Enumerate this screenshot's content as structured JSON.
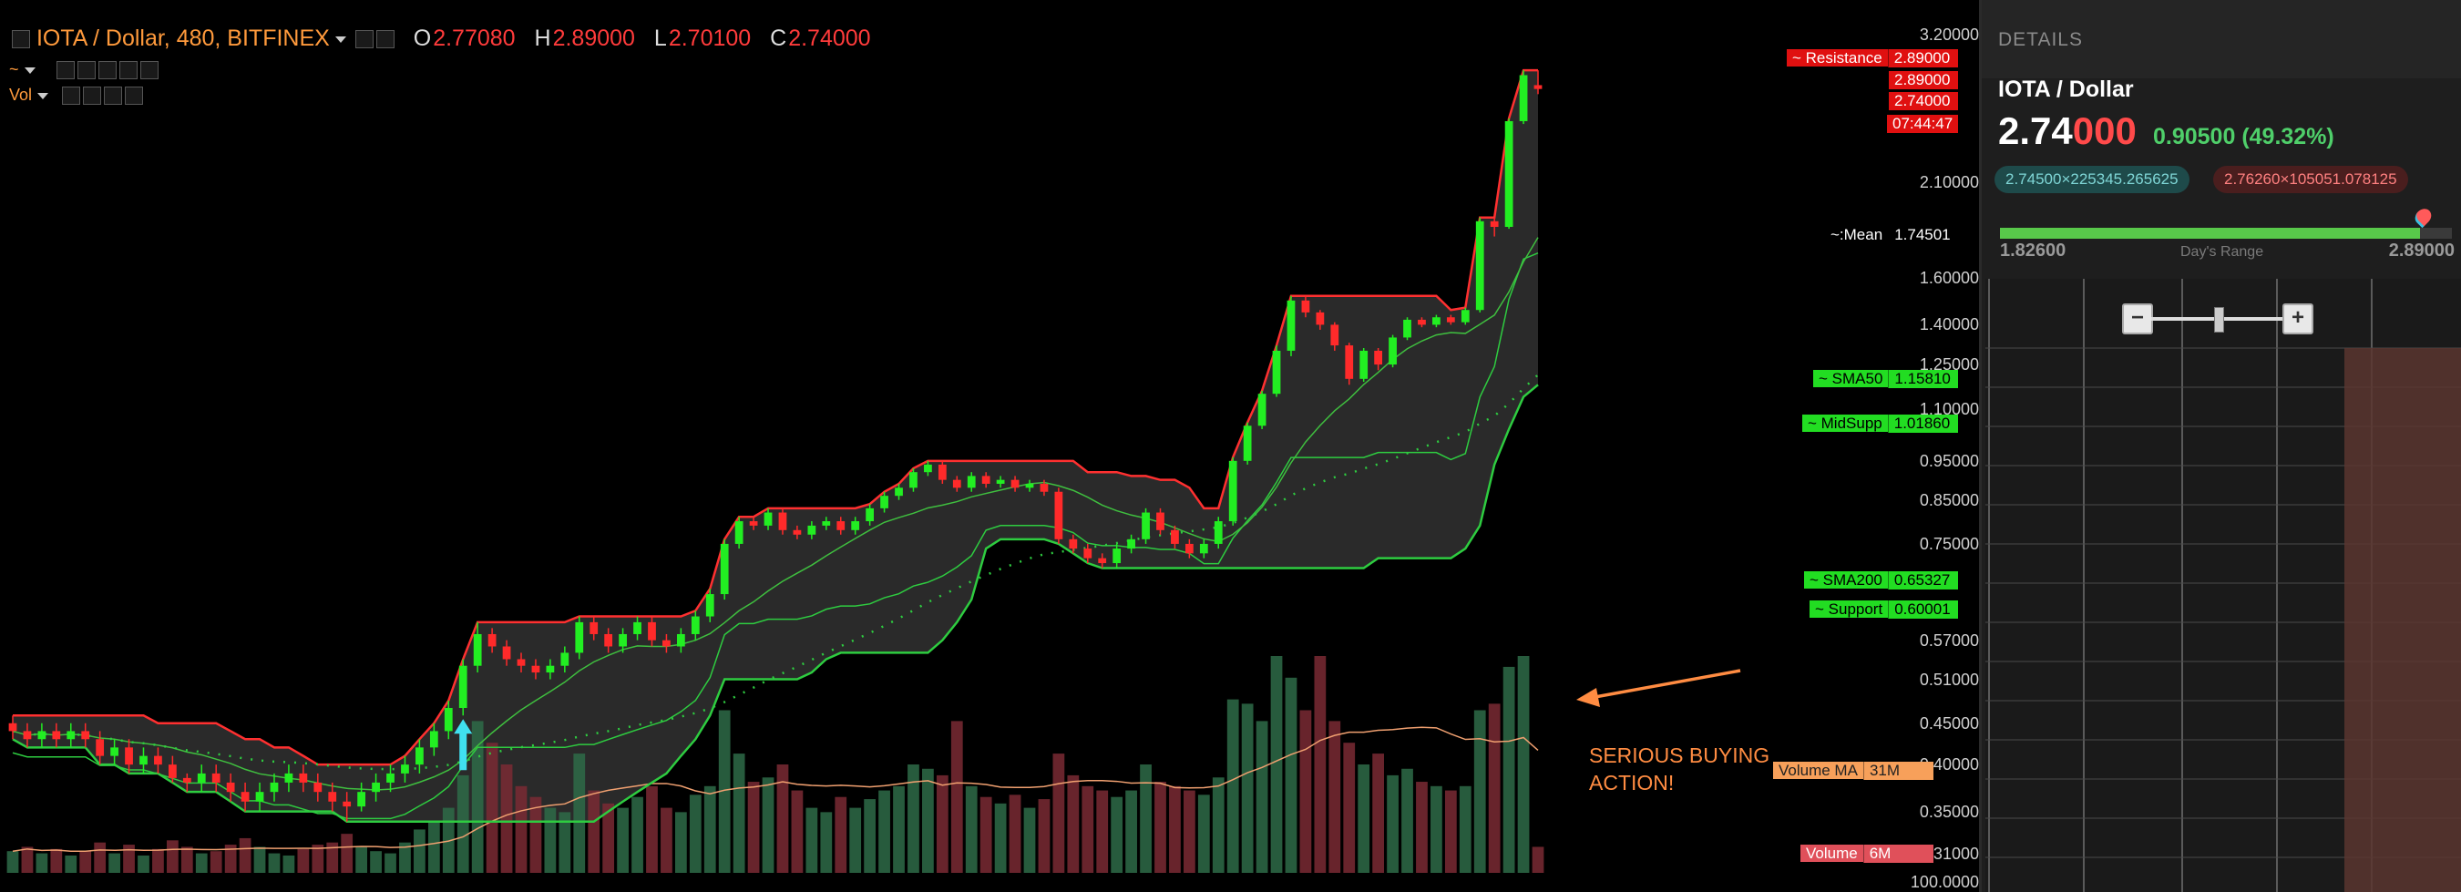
{
  "header": {
    "symbol": "IOTA / Dollar, 480, BITFINEX",
    "ohlc": [
      {
        "key": "O",
        "value": "2.77080"
      },
      {
        "key": "H",
        "value": "2.89000"
      },
      {
        "key": "L",
        "value": "2.70100"
      },
      {
        "key": "C",
        "value": "2.74000"
      }
    ],
    "indicator_row": "~",
    "volume_row": "Vol"
  },
  "annotation": "SERIOUS BUYING\nACTION!",
  "colors": {
    "up": "#22ee22",
    "down": "#ff2a2a",
    "resistance": "#ff3030",
    "support": "#2ecc40",
    "sma50": "#3fbf3f",
    "sma200": "#2ecc40",
    "volume_up": "#2e6b48",
    "volume_down": "#7a2a34",
    "volume_ma": "#f0a070",
    "annotation": "#ff8c42",
    "band_fill": "#2a2a2a"
  },
  "chart_data": {
    "type": "candlestick",
    "y_axis": {
      "scale": "log",
      "range": [
        0.3,
        3.3
      ],
      "ticks": [
        {
          "value": 3.2,
          "label": "3.20000"
        },
        {
          "value": 2.1,
          "label": "2.10000"
        },
        {
          "value": 1.6,
          "label": "1.60000"
        },
        {
          "value": 1.4,
          "label": "1.40000"
        },
        {
          "value": 1.25,
          "label": "1.25000"
        },
        {
          "value": 1.1,
          "label": "1.10000"
        },
        {
          "value": 0.95,
          "label": "0.95000"
        },
        {
          "value": 0.85,
          "label": "0.85000"
        },
        {
          "value": 0.75,
          "label": "0.75000"
        },
        {
          "value": 0.57,
          "label": "0.57000"
        },
        {
          "value": 0.51,
          "label": "0.51000"
        },
        {
          "value": 0.45,
          "label": "0.45000"
        },
        {
          "value": 0.4,
          "label": "0.40000"
        },
        {
          "value": 0.35,
          "label": "0.35000"
        },
        {
          "value": 0.31,
          "label": "0.31000"
        }
      ],
      "volume_axis_label": "100.0000"
    },
    "price_tags": [
      {
        "name": "~ Resistance",
        "value": "2.89000",
        "price": 2.89,
        "style": "red"
      },
      {
        "name": "",
        "value": "2.89000",
        "price": 2.85,
        "style": "red"
      },
      {
        "name": "",
        "value": "2.74000",
        "price": 2.74,
        "style": "red"
      },
      {
        "name": "",
        "value": "07:44:47",
        "price": 2.62,
        "style": "red"
      },
      {
        "name": "~:Mean",
        "value": "1.74501",
        "price": 1.745,
        "style": "plain"
      },
      {
        "name": "~ SMA50",
        "value": "1.15810",
        "price": 1.158,
        "style": "green"
      },
      {
        "name": "~ MidSupp",
        "value": "1.01860",
        "price": 1.0186,
        "style": "green"
      },
      {
        "name": "~ SMA200",
        "value": "0.65327",
        "price": 0.65327,
        "style": "green"
      },
      {
        "name": "~ Support",
        "value": "0.60001",
        "price": 0.60001,
        "style": "green"
      }
    ],
    "volume_tags": [
      {
        "name": "Volume MA",
        "value": "31M",
        "style": "orange"
      },
      {
        "name": "Volume",
        "value": "6M",
        "style": "volred"
      }
    ],
    "candles": [
      [
        0.45,
        0.44,
        0.46,
        0.43
      ],
      [
        0.44,
        0.43,
        0.45,
        0.42
      ],
      [
        0.43,
        0.44,
        0.45,
        0.42
      ],
      [
        0.44,
        0.43,
        0.45,
        0.42
      ],
      [
        0.43,
        0.44,
        0.45,
        0.42
      ],
      [
        0.44,
        0.43,
        0.45,
        0.42
      ],
      [
        0.43,
        0.41,
        0.44,
        0.4
      ],
      [
        0.41,
        0.42,
        0.43,
        0.4
      ],
      [
        0.42,
        0.4,
        0.43,
        0.39
      ],
      [
        0.4,
        0.41,
        0.42,
        0.39
      ],
      [
        0.41,
        0.4,
        0.42,
        0.39
      ],
      [
        0.4,
        0.385,
        0.41,
        0.38
      ],
      [
        0.385,
        0.38,
        0.39,
        0.37
      ],
      [
        0.38,
        0.39,
        0.4,
        0.37
      ],
      [
        0.39,
        0.38,
        0.4,
        0.37
      ],
      [
        0.38,
        0.37,
        0.39,
        0.36
      ],
      [
        0.37,
        0.36,
        0.38,
        0.35
      ],
      [
        0.36,
        0.37,
        0.38,
        0.35
      ],
      [
        0.37,
        0.38,
        0.39,
        0.36
      ],
      [
        0.38,
        0.39,
        0.4,
        0.37
      ],
      [
        0.39,
        0.38,
        0.4,
        0.37
      ],
      [
        0.38,
        0.37,
        0.39,
        0.36
      ],
      [
        0.37,
        0.36,
        0.38,
        0.35
      ],
      [
        0.36,
        0.355,
        0.37,
        0.34
      ],
      [
        0.355,
        0.37,
        0.38,
        0.35
      ],
      [
        0.37,
        0.38,
        0.39,
        0.36
      ],
      [
        0.38,
        0.39,
        0.4,
        0.37
      ],
      [
        0.39,
        0.4,
        0.41,
        0.38
      ],
      [
        0.4,
        0.42,
        0.43,
        0.39
      ],
      [
        0.42,
        0.44,
        0.45,
        0.41
      ],
      [
        0.44,
        0.47,
        0.48,
        0.43
      ],
      [
        0.47,
        0.53,
        0.54,
        0.46
      ],
      [
        0.53,
        0.58,
        0.6,
        0.52
      ],
      [
        0.58,
        0.56,
        0.59,
        0.55
      ],
      [
        0.56,
        0.54,
        0.57,
        0.53
      ],
      [
        0.54,
        0.53,
        0.55,
        0.52
      ],
      [
        0.53,
        0.52,
        0.54,
        0.51
      ],
      [
        0.52,
        0.53,
        0.54,
        0.51
      ],
      [
        0.53,
        0.55,
        0.56,
        0.52
      ],
      [
        0.55,
        0.6,
        0.61,
        0.54
      ],
      [
        0.6,
        0.58,
        0.61,
        0.57
      ],
      [
        0.58,
        0.56,
        0.59,
        0.55
      ],
      [
        0.56,
        0.58,
        0.59,
        0.55
      ],
      [
        0.58,
        0.6,
        0.61,
        0.57
      ],
      [
        0.6,
        0.57,
        0.61,
        0.56
      ],
      [
        0.57,
        0.56,
        0.58,
        0.55
      ],
      [
        0.56,
        0.58,
        0.59,
        0.55
      ],
      [
        0.58,
        0.61,
        0.62,
        0.57
      ],
      [
        0.61,
        0.65,
        0.66,
        0.6
      ],
      [
        0.65,
        0.75,
        0.76,
        0.64
      ],
      [
        0.75,
        0.8,
        0.81,
        0.74
      ],
      [
        0.8,
        0.79,
        0.81,
        0.78
      ],
      [
        0.79,
        0.82,
        0.83,
        0.78
      ],
      [
        0.82,
        0.78,
        0.83,
        0.77
      ],
      [
        0.78,
        0.77,
        0.79,
        0.76
      ],
      [
        0.77,
        0.79,
        0.8,
        0.76
      ],
      [
        0.79,
        0.8,
        0.81,
        0.78
      ],
      [
        0.8,
        0.78,
        0.81,
        0.77
      ],
      [
        0.78,
        0.8,
        0.81,
        0.77
      ],
      [
        0.8,
        0.83,
        0.84,
        0.79
      ],
      [
        0.83,
        0.86,
        0.87,
        0.82
      ],
      [
        0.86,
        0.88,
        0.89,
        0.85
      ],
      [
        0.88,
        0.92,
        0.93,
        0.87
      ],
      [
        0.92,
        0.94,
        0.95,
        0.91
      ],
      [
        0.94,
        0.9,
        0.95,
        0.89
      ],
      [
        0.9,
        0.88,
        0.91,
        0.87
      ],
      [
        0.88,
        0.91,
        0.92,
        0.87
      ],
      [
        0.91,
        0.89,
        0.92,
        0.88
      ],
      [
        0.89,
        0.9,
        0.91,
        0.88
      ],
      [
        0.9,
        0.88,
        0.91,
        0.87
      ],
      [
        0.88,
        0.89,
        0.9,
        0.87
      ],
      [
        0.89,
        0.87,
        0.9,
        0.86
      ],
      [
        0.87,
        0.76,
        0.88,
        0.75
      ],
      [
        0.76,
        0.74,
        0.77,
        0.73
      ],
      [
        0.74,
        0.72,
        0.75,
        0.71
      ],
      [
        0.72,
        0.71,
        0.73,
        0.7
      ],
      [
        0.71,
        0.74,
        0.75,
        0.7
      ],
      [
        0.74,
        0.76,
        0.77,
        0.73
      ],
      [
        0.76,
        0.82,
        0.83,
        0.75
      ],
      [
        0.82,
        0.78,
        0.83,
        0.77
      ],
      [
        0.78,
        0.75,
        0.79,
        0.74
      ],
      [
        0.75,
        0.73,
        0.76,
        0.72
      ],
      [
        0.73,
        0.75,
        0.76,
        0.72
      ],
      [
        0.75,
        0.8,
        0.81,
        0.74
      ],
      [
        0.8,
        0.95,
        0.96,
        0.79
      ],
      [
        0.95,
        1.05,
        1.06,
        0.94
      ],
      [
        1.05,
        1.15,
        1.16,
        1.04
      ],
      [
        1.15,
        1.3,
        1.32,
        1.14
      ],
      [
        1.3,
        1.5,
        1.52,
        1.28
      ],
      [
        1.5,
        1.45,
        1.52,
        1.43
      ],
      [
        1.45,
        1.4,
        1.46,
        1.38
      ],
      [
        1.4,
        1.32,
        1.41,
        1.3
      ],
      [
        1.32,
        1.2,
        1.33,
        1.18
      ],
      [
        1.2,
        1.3,
        1.31,
        1.19
      ],
      [
        1.3,
        1.25,
        1.31,
        1.23
      ],
      [
        1.25,
        1.35,
        1.36,
        1.24
      ],
      [
        1.35,
        1.42,
        1.43,
        1.34
      ],
      [
        1.42,
        1.4,
        1.43,
        1.39
      ],
      [
        1.4,
        1.43,
        1.44,
        1.39
      ],
      [
        1.43,
        1.41,
        1.44,
        1.4
      ],
      [
        1.41,
        1.46,
        1.47,
        1.4
      ],
      [
        1.46,
        1.88,
        1.9,
        1.45
      ],
      [
        1.88,
        1.85,
        1.9,
        1.8
      ],
      [
        1.85,
        2.5,
        2.52,
        1.84
      ],
      [
        2.5,
        2.85,
        2.89,
        2.48
      ],
      [
        2.77,
        2.74,
        2.89,
        2.7
      ]
    ],
    "volume": [
      [
        10,
        0
      ],
      [
        12,
        1
      ],
      [
        9,
        0
      ],
      [
        11,
        1
      ],
      [
        8,
        0
      ],
      [
        10,
        1
      ],
      [
        14,
        1
      ],
      [
        9,
        0
      ],
      [
        13,
        1
      ],
      [
        8,
        0
      ],
      [
        11,
        1
      ],
      [
        15,
        1
      ],
      [
        12,
        1
      ],
      [
        9,
        0
      ],
      [
        10,
        1
      ],
      [
        13,
        1
      ],
      [
        16,
        1
      ],
      [
        12,
        0
      ],
      [
        9,
        0
      ],
      [
        8,
        0
      ],
      [
        11,
        1
      ],
      [
        13,
        1
      ],
      [
        14,
        1
      ],
      [
        18,
        1
      ],
      [
        12,
        0
      ],
      [
        10,
        0
      ],
      [
        9,
        0
      ],
      [
        14,
        0
      ],
      [
        20,
        0
      ],
      [
        24,
        0
      ],
      [
        30,
        0
      ],
      [
        45,
        0
      ],
      [
        70,
        0
      ],
      [
        60,
        1
      ],
      [
        50,
        1
      ],
      [
        40,
        1
      ],
      [
        35,
        1
      ],
      [
        30,
        0
      ],
      [
        28,
        0
      ],
      [
        55,
        0
      ],
      [
        38,
        1
      ],
      [
        32,
        1
      ],
      [
        30,
        0
      ],
      [
        35,
        0
      ],
      [
        40,
        1
      ],
      [
        30,
        1
      ],
      [
        28,
        0
      ],
      [
        36,
        0
      ],
      [
        40,
        0
      ],
      [
        75,
        0
      ],
      [
        55,
        0
      ],
      [
        42,
        1
      ],
      [
        44,
        0
      ],
      [
        50,
        1
      ],
      [
        38,
        1
      ],
      [
        30,
        0
      ],
      [
        28,
        0
      ],
      [
        35,
        1
      ],
      [
        30,
        0
      ],
      [
        34,
        0
      ],
      [
        38,
        0
      ],
      [
        40,
        0
      ],
      [
        50,
        0
      ],
      [
        48,
        0
      ],
      [
        45,
        1
      ],
      [
        70,
        1
      ],
      [
        40,
        0
      ],
      [
        35,
        1
      ],
      [
        32,
        0
      ],
      [
        36,
        1
      ],
      [
        30,
        0
      ],
      [
        34,
        1
      ],
      [
        55,
        1
      ],
      [
        45,
        1
      ],
      [
        40,
        1
      ],
      [
        38,
        1
      ],
      [
        35,
        0
      ],
      [
        38,
        0
      ],
      [
        50,
        0
      ],
      [
        42,
        1
      ],
      [
        40,
        1
      ],
      [
        38,
        1
      ],
      [
        36,
        0
      ],
      [
        44,
        0
      ],
      [
        80,
        0
      ],
      [
        78,
        0
      ],
      [
        70,
        0
      ],
      [
        100,
        0
      ],
      [
        90,
        0
      ],
      [
        75,
        1
      ],
      [
        100,
        1
      ],
      [
        70,
        1
      ],
      [
        60,
        1
      ],
      [
        50,
        0
      ],
      [
        55,
        1
      ],
      [
        45,
        0
      ],
      [
        48,
        0
      ],
      [
        42,
        1
      ],
      [
        40,
        0
      ],
      [
        38,
        1
      ],
      [
        40,
        0
      ],
      [
        75,
        0
      ],
      [
        78,
        1
      ],
      [
        95,
        0
      ],
      [
        100,
        0
      ],
      [
        12,
        1
      ]
    ],
    "volume_max": 100
  },
  "details": {
    "title": "DETAILS",
    "pair": "IOTA / Dollar",
    "price_main": "2.74",
    "price_tail": "000",
    "change": "0.90500 (49.32%)",
    "bid": "2.74500×225345.265625",
    "ask": "2.76260×105051.078125",
    "range_low": "1.82600",
    "range_high": "2.89000",
    "range_label": "Day's Range",
    "range_position": 0.93,
    "zoom_minus": "−",
    "zoom_plus": "+"
  }
}
